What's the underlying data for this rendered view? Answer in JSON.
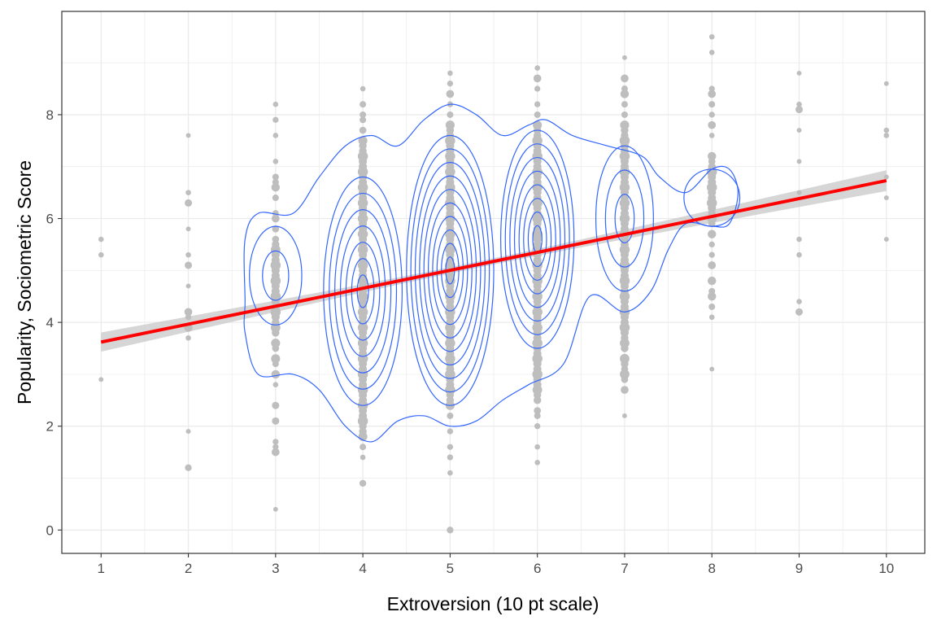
{
  "chart_data": {
    "type": "scatter",
    "title": "",
    "xlabel": "Extroversion (10 pt scale)",
    "ylabel": "Popularity, Sociometric Score",
    "xlim": [
      0.55,
      10.44
    ],
    "ylim": [
      -0.45,
      9.99
    ],
    "xticks": [
      1,
      2,
      3,
      4,
      5,
      6,
      7,
      8,
      9,
      10
    ],
    "xtick_labels": [
      "1",
      "2",
      "3",
      "4",
      "5",
      "6",
      "7",
      "8",
      "9",
      "10"
    ],
    "yticks": [
      0,
      2,
      4,
      6,
      8
    ],
    "ytick_labels": [
      "0",
      "2",
      "4",
      "6",
      "8"
    ],
    "grid": true,
    "colors": {
      "points": "#bebebe",
      "contour": "#3366ff",
      "fit": "#ff0000",
      "band": "#c8c8c8",
      "grid": "#ebebeb"
    },
    "columns": [
      {
        "x": 1,
        "y": [
          5.6,
          5.3,
          2.9
        ]
      },
      {
        "x": 2,
        "y": [
          7.6,
          6.5,
          6.3,
          5.8,
          5.3,
          5.1,
          4.7,
          4.2,
          4.1,
          3.9,
          3.7,
          1.9,
          1.2
        ]
      },
      {
        "x": 3,
        "y": [
          0.4,
          1.5,
          1.6,
          1.7,
          2.1,
          2.4,
          2.8,
          3.0,
          3.2,
          3.3,
          3.5,
          3.6,
          3.8,
          3.9,
          4.0,
          4.1,
          4.2,
          4.3,
          4.4,
          4.5,
          4.6,
          4.7,
          4.8,
          4.9,
          5.0,
          5.1,
          5.2,
          5.3,
          5.4,
          5.5,
          5.6,
          5.8,
          6.0,
          6.1,
          6.4,
          6.6,
          6.7,
          6.8,
          7.1,
          7.6,
          7.9,
          8.2
        ]
      },
      {
        "x": 4,
        "y": [
          0.9,
          1.4,
          1.6,
          1.8,
          1.9,
          2.0
        ],
        "range": [
          2.1,
          7.5
        ],
        "extra": [
          7.7,
          7.9,
          8.0,
          8.2,
          8.5
        ]
      },
      {
        "x": 5,
        "y": [
          0.0,
          1.1,
          1.4,
          1.6,
          1.9,
          2.2
        ],
        "range": [
          2.4,
          7.8
        ],
        "extra": [
          8.0,
          8.2,
          8.4,
          8.6,
          8.8
        ]
      },
      {
        "x": 6,
        "y": [
          1.3,
          1.6,
          2.0,
          2.2,
          2.3,
          2.5
        ],
        "range": [
          2.6,
          7.8
        ],
        "extra": [
          8.0,
          8.2,
          8.5,
          8.7,
          8.9
        ]
      },
      {
        "x": 7,
        "y": [
          2.2,
          2.7,
          2.9,
          3.0,
          3.1,
          3.2,
          3.3
        ],
        "range": [
          3.5,
          7.8
        ],
        "extra": [
          8.0,
          8.2,
          8.4,
          8.5,
          8.7,
          9.1
        ]
      },
      {
        "x": 8,
        "y": [
          3.1,
          4.1,
          4.3,
          4.5,
          4.6,
          4.8,
          5.1,
          5.3,
          5.5,
          5.7,
          5.9
        ],
        "range": [
          6.0,
          7.2
        ],
        "extra": [
          7.6,
          7.8,
          8.0,
          8.2,
          8.4,
          8.5,
          9.2,
          9.5
        ]
      },
      {
        "x": 9,
        "y": [
          4.2,
          4.4,
          5.3,
          5.6,
          6.5,
          7.1,
          7.7,
          8.1,
          8.2,
          8.8
        ]
      },
      {
        "x": 10,
        "y": [
          5.6,
          6.4,
          6.8,
          7.6,
          7.7,
          8.6
        ]
      }
    ],
    "fit": {
      "x": [
        1,
        10
      ],
      "y": [
        3.62,
        6.73
      ],
      "band_halfwidth": {
        "ends": 0.2,
        "center": 0.06,
        "center_x": 5.3
      }
    },
    "density_outer": [
      [
        2.65,
        4.4
      ],
      [
        2.65,
        5.6
      ],
      [
        2.8,
        6.1
      ],
      [
        3.2,
        6.1
      ],
      [
        3.5,
        6.8
      ],
      [
        3.8,
        7.4
      ],
      [
        4.1,
        7.6
      ],
      [
        4.4,
        7.4
      ],
      [
        4.7,
        7.9
      ],
      [
        5.0,
        8.2
      ],
      [
        5.3,
        8.0
      ],
      [
        5.6,
        7.6
      ],
      [
        5.9,
        7.8
      ],
      [
        6.1,
        7.9
      ],
      [
        6.4,
        7.6
      ],
      [
        6.8,
        7.4
      ],
      [
        7.2,
        7.2
      ],
      [
        7.4,
        6.8
      ],
      [
        7.7,
        6.5
      ],
      [
        8.0,
        6.95
      ],
      [
        8.2,
        6.95
      ],
      [
        8.3,
        6.5
      ],
      [
        8.2,
        5.9
      ],
      [
        8.0,
        5.85
      ],
      [
        7.7,
        5.9
      ],
      [
        7.5,
        5.4
      ],
      [
        7.3,
        4.6
      ],
      [
        7.0,
        4.2
      ],
      [
        6.6,
        4.5
      ],
      [
        6.3,
        3.2
      ],
      [
        5.9,
        2.8
      ],
      [
        5.6,
        2.5
      ],
      [
        5.3,
        2.1
      ],
      [
        5.0,
        2.0
      ],
      [
        4.7,
        2.2
      ],
      [
        4.4,
        2.1
      ],
      [
        4.1,
        1.7
      ],
      [
        3.8,
        2.0
      ],
      [
        3.5,
        2.7
      ],
      [
        3.2,
        3.0
      ],
      [
        2.8,
        3.0
      ],
      [
        2.65,
        3.8
      ]
    ],
    "density_rings": [
      {
        "cx": 3,
        "cy": 4.9,
        "rx": 0.3,
        "ry": 0.95,
        "n": 2
      },
      {
        "cx": 4,
        "cy": 4.6,
        "rx": 0.45,
        "ry": 2.2,
        "n": 7
      },
      {
        "cx": 5,
        "cy": 5.0,
        "rx": 0.5,
        "ry": 2.6,
        "n": 10
      },
      {
        "cx": 6,
        "cy": 5.6,
        "rx": 0.42,
        "ry": 2.1,
        "n": 8
      },
      {
        "cx": 7,
        "cy": 6.0,
        "rx": 0.33,
        "ry": 1.4,
        "n": 3
      },
      {
        "cx": 8,
        "cy": 6.4,
        "rx": 0.32,
        "ry": 0.55,
        "n": 1
      }
    ]
  }
}
